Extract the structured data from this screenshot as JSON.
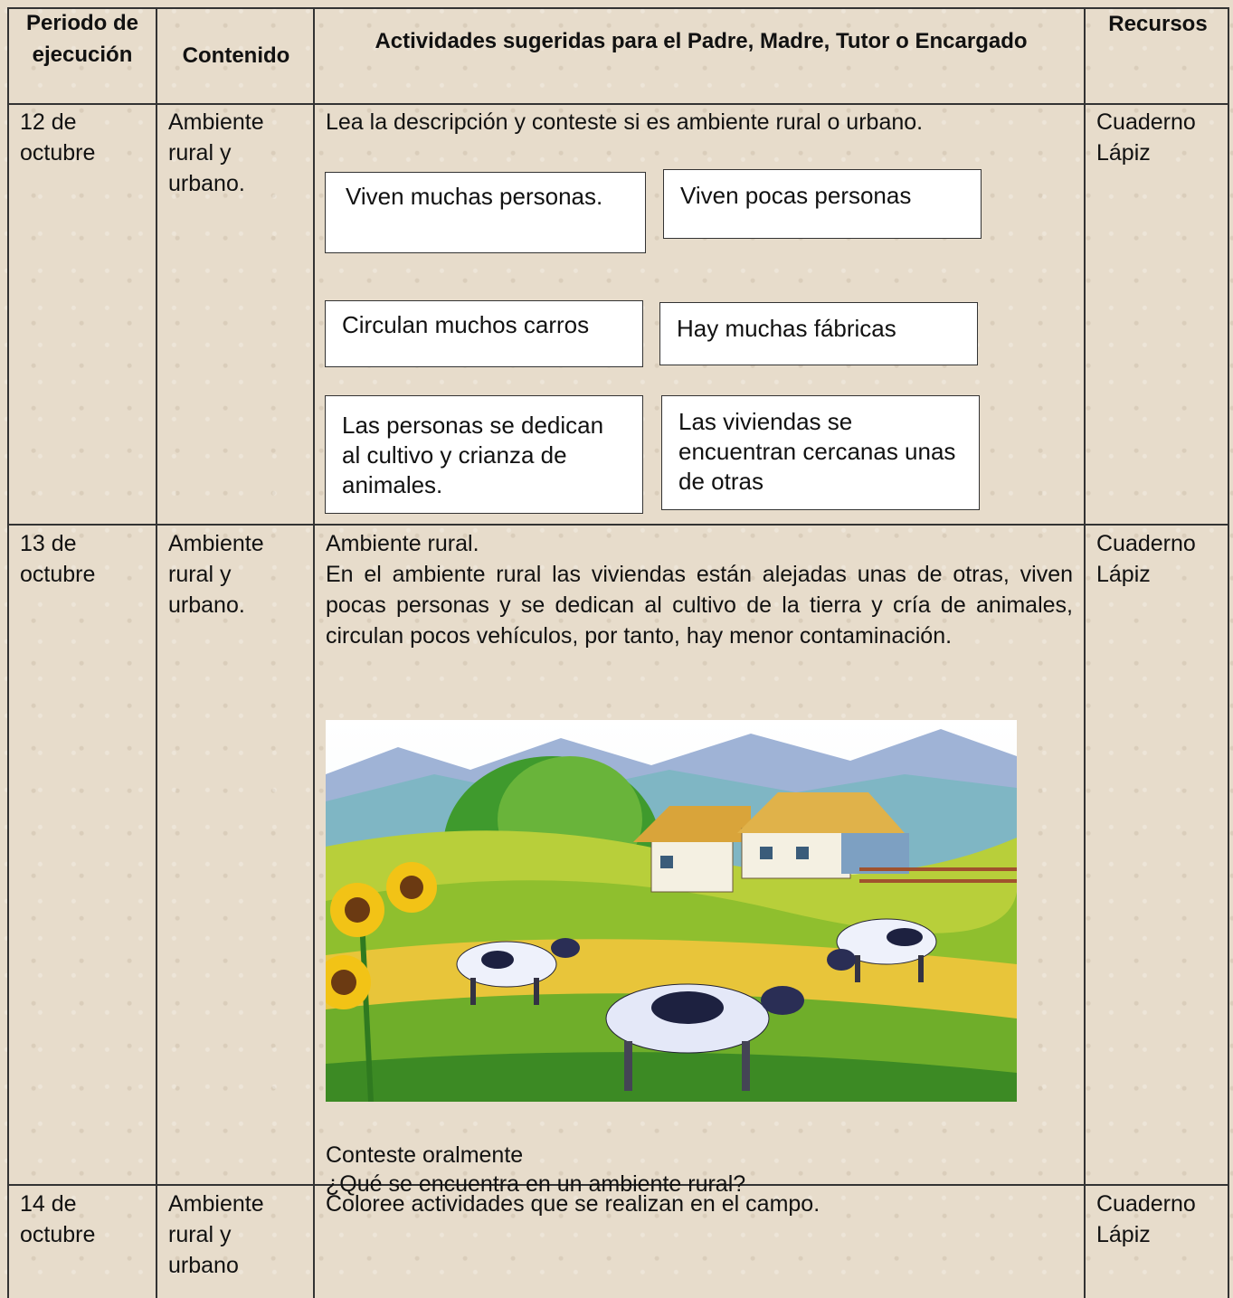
{
  "table": {
    "header": [
      "Periodo de ejecución",
      "Contenido",
      "Actividades sugeridas para el Padre, Madre, Tutor o Encargado",
      "Recursos"
    ],
    "rows": [
      {
        "period": "12 de octubre",
        "content": "Ambiente rural y urbano.",
        "activity": {
          "instruction": "Lea la descripción y conteste si es ambiente rural o urbano.",
          "boxes": [
            "Viven muchas personas.",
            "Viven pocas personas",
            "Circulan muchos carros",
            "Hay muchas fábricas",
            "Las personas se dedican al cultivo y crianza de animales.",
            "Las viviendas se encuentran cercanas unas de otras"
          ]
        },
        "resources": [
          "Cuaderno",
          "Lápiz"
        ]
      },
      {
        "period": "13 de octubre",
        "content": "Ambiente rural y urbano.",
        "activity": {
          "title": "Ambiente rural.",
          "paragraph": "En el ambiente rural las viviendas están alejadas unas de otras, viven pocas personas y se dedican al cultivo de la tierra y cría de animales, circulan pocos vehículos, por tanto, hay menor contaminación.",
          "prompt": "Conteste oralmente",
          "question": "¿Qué se encuentra en un ambiente rural?"
        },
        "resources": [
          "Cuaderno",
          "Lápiz"
        ]
      },
      {
        "period": "14 de octubre",
        "content": "Ambiente rural y urbano",
        "activity": {
          "instruction": "Coloree actividades que se realizan en el campo."
        },
        "resources": [
          "Cuaderno",
          "Lápiz"
        ]
      }
    ]
  }
}
